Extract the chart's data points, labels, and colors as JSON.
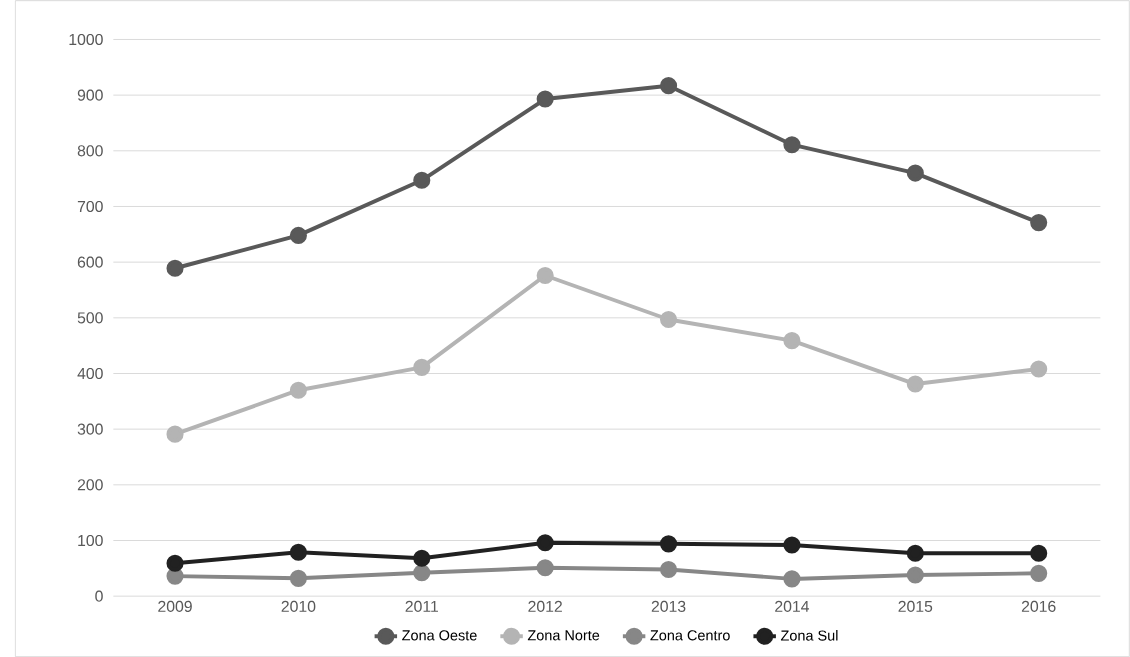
{
  "chart_data": {
    "type": "line",
    "categories": [
      "2009",
      "2010",
      "2011",
      "2012",
      "2013",
      "2014",
      "2015",
      "2016"
    ],
    "series": [
      {
        "name": "Zona Oeste",
        "color": "#595959",
        "values": [
          589,
          648,
          747,
          893,
          917,
          811,
          760,
          671
        ]
      },
      {
        "name": "Zona Norte",
        "color": "#b4b4b4",
        "values": [
          291,
          370,
          411,
          576,
          497,
          459,
          381,
          408
        ]
      },
      {
        "name": "Zona Centro",
        "color": "#878787",
        "values": [
          36,
          32,
          42,
          51,
          48,
          31,
          38,
          41
        ]
      },
      {
        "name": "Zona Sul",
        "color": "#212121",
        "values": [
          59,
          79,
          68,
          96,
          94,
          92,
          77,
          77
        ]
      }
    ],
    "ylim": [
      0,
      1000
    ],
    "yticks": [
      0,
      100,
      200,
      300,
      400,
      500,
      600,
      700,
      800,
      900,
      1000
    ],
    "grid": "y",
    "legend": "bottom",
    "marker": "circle",
    "line_style": "solid"
  }
}
